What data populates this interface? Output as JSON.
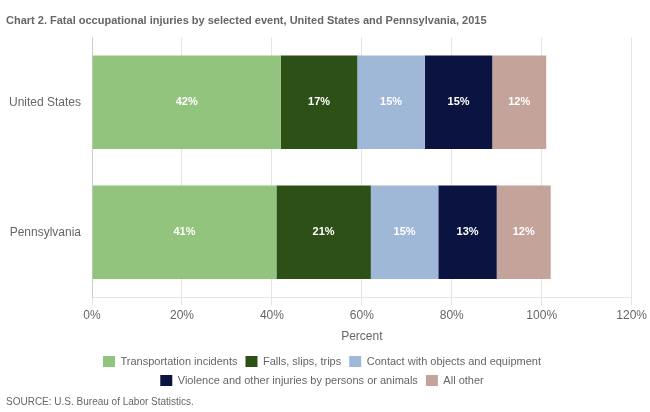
{
  "chart_data": {
    "type": "bar",
    "orientation": "horizontal",
    "stacked": true,
    "title": "Chart 2. Fatal occupational injuries by selected event, United States and Pennsylvania, 2015",
    "categories": [
      "United States",
      "Pennsylvania"
    ],
    "series": [
      {
        "name": "Transportation incidents",
        "color": "#93c47d",
        "values": [
          42,
          41
        ],
        "value_labels": [
          "42%",
          "41%"
        ]
      },
      {
        "name": "Falls, slips, trips",
        "color": "#2d5016",
        "values": [
          17,
          21
        ],
        "value_labels": [
          "17%",
          "21%"
        ]
      },
      {
        "name": "Contact with objects and equipment",
        "color": "#9fb8d8",
        "values": [
          15,
          15
        ],
        "value_labels": [
          "15%",
          "15%"
        ]
      },
      {
        "name": "Violence and other injuries by persons or animals",
        "color": "#0b1340",
        "values": [
          15,
          13
        ],
        "value_labels": [
          "15%",
          "13%"
        ]
      },
      {
        "name": "All other",
        "color": "#c4a49a",
        "values": [
          12,
          12
        ],
        "value_labels": [
          "12%",
          "12%"
        ]
      }
    ],
    "xlabel": "Percent",
    "xlim": [
      0,
      120
    ],
    "xticks": [
      {
        "value": 0,
        "label": "0%"
      },
      {
        "value": 20,
        "label": "20%"
      },
      {
        "value": 40,
        "label": "40%"
      },
      {
        "value": 60,
        "label": "60%"
      },
      {
        "value": 80,
        "label": "80%"
      },
      {
        "value": 100,
        "label": "100%"
      },
      {
        "value": 120,
        "label": "120%"
      }
    ],
    "grid": true,
    "legend": "bottom",
    "data_labels": true,
    "annotations": [
      "SOURCE: U.S. Bureau of Labor Statistics."
    ]
  }
}
